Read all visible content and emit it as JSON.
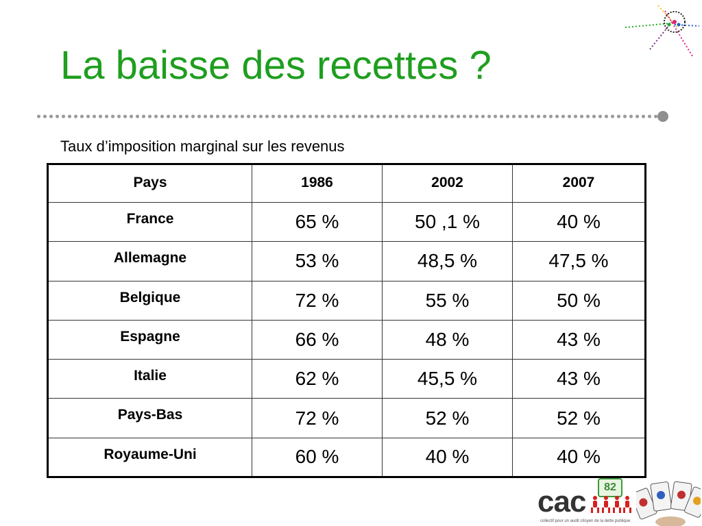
{
  "slide": {
    "title": "La baisse des recettes ?",
    "subtitle": "Taux d’imposition marginal sur les revenus"
  },
  "table": {
    "headers": [
      "Pays",
      "1986",
      "2002",
      "2007"
    ],
    "rows": [
      {
        "country": "France",
        "v1986": "65 %",
        "v2002": "50 ,1 %",
        "v2007": "40 %"
      },
      {
        "country": "Allemagne",
        "v1986": "53 %",
        "v2002": "48,5 %",
        "v2007": "47,5 %"
      },
      {
        "country": "Belgique",
        "v1986": "72 %",
        "v2002": "55 %",
        "v2007": "50 %"
      },
      {
        "country": "Espagne",
        "v1986": "66 %",
        "v2002": "48 %",
        "v2007": "43 %"
      },
      {
        "country": "Italie",
        "v1986": "62 %",
        "v2002": "45,5 %",
        "v2007": "43 %"
      },
      {
        "country": "Pays-Bas",
        "v1986": "72 %",
        "v2002": "52 %",
        "v2007": "52 %"
      },
      {
        "country": "Royaume-Uni",
        "v1986": "60 %",
        "v2002": "40 %",
        "v2007": "40 %"
      }
    ]
  },
  "logos": {
    "cac_text": "cac",
    "cac_badge": "82",
    "cac_tagline": "collectif pour un audit citoyen de la dette publique",
    "network_icon": "network-lines-icon",
    "cards_icon": "playing-cards-icon"
  },
  "colors": {
    "title": "#1f9e1f",
    "divider": "#9a9a9a",
    "cac_green": "#3a9a3a",
    "cac_red": "#d62020"
  }
}
